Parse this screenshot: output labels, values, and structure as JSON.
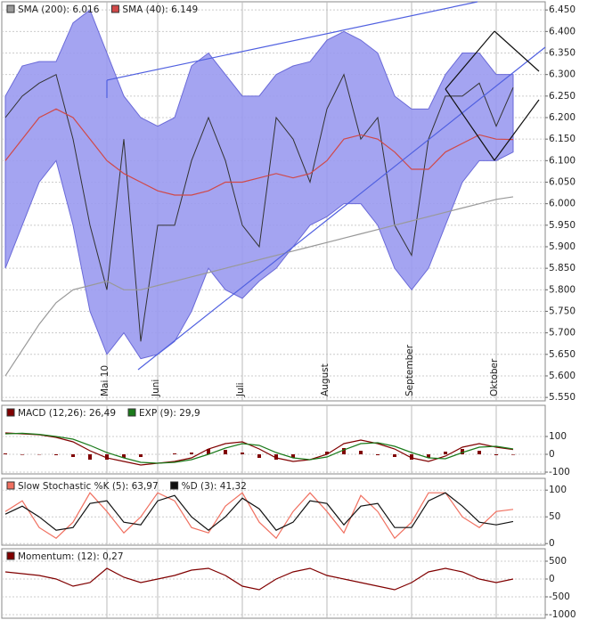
{
  "chart_data": [
    {
      "type": "line",
      "categories": [
        null,
        null,
        null,
        null,
        null,
        null,
        "Mai 10",
        null,
        null,
        "Juni",
        null,
        null,
        null,
        null,
        "Juli",
        null,
        null,
        null,
        null,
        "August",
        null,
        null,
        null,
        null,
        "September",
        null,
        null,
        null,
        null,
        "Oktober",
        null
      ],
      "series": [
        {
          "name": "SMA (200): 6.016",
          "color": "#999999",
          "values": [
            5.6,
            5.66,
            5.72,
            5.77,
            5.8,
            5.81,
            5.82,
            5.8,
            5.8,
            5.81,
            5.82,
            5.83,
            5.84,
            5.85,
            5.86,
            5.87,
            5.88,
            5.89,
            5.9,
            5.91,
            5.92,
            5.93,
            5.94,
            5.95,
            5.96,
            5.97,
            5.98,
            5.99,
            6.0,
            6.01,
            6.016
          ]
        },
        {
          "name": "SMA (40): 6.149",
          "color": "#d04848",
          "values": [
            6.1,
            6.15,
            6.2,
            6.22,
            6.2,
            6.15,
            6.1,
            6.07,
            6.05,
            6.03,
            6.02,
            6.02,
            6.03,
            6.05,
            6.05,
            6.06,
            6.07,
            6.06,
            6.07,
            6.1,
            6.15,
            6.16,
            6.15,
            6.12,
            6.08,
            6.08,
            6.12,
            6.14,
            6.16,
            6.15,
            6.149
          ]
        }
      ],
      "band": {
        "color": "#9a9af0",
        "upper": [
          6.25,
          6.32,
          6.33,
          6.33,
          6.42,
          6.45,
          6.35,
          6.25,
          6.2,
          6.18,
          6.2,
          6.32,
          6.35,
          6.3,
          6.25,
          6.25,
          6.3,
          6.32,
          6.33,
          6.38,
          6.4,
          6.38,
          6.35,
          6.25,
          6.22,
          6.22,
          6.3,
          6.35,
          6.35,
          6.3,
          6.3
        ],
        "lower": [
          5.85,
          5.95,
          6.05,
          6.1,
          5.95,
          5.75,
          5.65,
          5.7,
          5.64,
          5.65,
          5.68,
          5.75,
          5.85,
          5.8,
          5.78,
          5.82,
          5.85,
          5.9,
          5.95,
          5.97,
          6.0,
          6.0,
          5.95,
          5.85,
          5.8,
          5.85,
          5.95,
          6.05,
          6.1,
          6.1,
          6.12
        ]
      },
      "price": {
        "color": "#333333",
        "values": [
          6.2,
          6.25,
          6.28,
          6.3,
          6.15,
          5.95,
          5.8,
          6.15,
          5.68,
          5.95,
          5.95,
          6.1,
          6.2,
          6.1,
          5.95,
          5.9,
          6.2,
          6.15,
          6.05,
          6.22,
          6.3,
          6.15,
          6.2,
          5.95,
          5.88,
          6.15,
          6.25,
          6.25,
          6.28,
          6.18,
          6.27
        ]
      },
      "ylim": [
        5.542,
        6.469
      ],
      "yticks": [
        {
          "value": 6.45,
          "label": "6.450"
        },
        {
          "value": 6.4,
          "label": "6.400"
        },
        {
          "value": 6.35,
          "label": "6.350"
        },
        {
          "value": 6.3,
          "label": "6.300"
        },
        {
          "value": 6.25,
          "label": "6.250"
        },
        {
          "value": 6.2,
          "label": "6.200"
        },
        {
          "value": 6.15,
          "label": "6.150"
        },
        {
          "value": 6.1,
          "label": "6.100"
        },
        {
          "value": 6.05,
          "label": "6.050"
        },
        {
          "value": 6,
          "label": "6.000"
        },
        {
          "value": 5.95,
          "label": "5.950"
        },
        {
          "value": 5.9,
          "label": "5.900"
        },
        {
          "value": 5.85,
          "label": "5.850"
        },
        {
          "value": 5.8,
          "label": "5.800"
        },
        {
          "value": 5.75,
          "label": "5.750"
        },
        {
          "value": 5.7,
          "label": "5.700"
        },
        {
          "value": 5.65,
          "label": "5.650"
        },
        {
          "value": 5.6,
          "label": "5.600"
        },
        {
          "value": 5.55,
          "label": "5.550"
        }
      ],
      "grid": true
    },
    {
      "type": "line",
      "series": [
        {
          "name": "MACD (12,26): 26,49",
          "color": "#800000",
          "values": [
            120,
            115,
            110,
            95,
            70,
            20,
            -20,
            -40,
            -60,
            -50,
            -40,
            -20,
            30,
            60,
            70,
            30,
            -20,
            -40,
            -30,
            0,
            60,
            80,
            60,
            30,
            -20,
            -40,
            -10,
            40,
            60,
            40,
            26.49
          ]
        },
        {
          "name": "EXP (9): 29,9",
          "color": "#1a7a1a",
          "values": [
            115,
            118,
            112,
            100,
            85,
            50,
            10,
            -20,
            -45,
            -50,
            -45,
            -30,
            0,
            35,
            60,
            50,
            10,
            -20,
            -30,
            -15,
            25,
            60,
            65,
            45,
            10,
            -20,
            -25,
            10,
            40,
            45,
            29.9
          ]
        }
      ],
      "histogram": {
        "color": "#800000",
        "values": [
          5,
          -3,
          -2,
          -5,
          -15,
          -30,
          -30,
          -20,
          -15,
          0,
          5,
          10,
          30,
          25,
          10,
          -20,
          -30,
          -20,
          0,
          15,
          35,
          20,
          -5,
          -15,
          -30,
          -20,
          15,
          30,
          20,
          -5,
          -3
        ]
      },
      "ylim": [
        -110,
        275
      ],
      "yticks": [
        100,
        0,
        -100
      ],
      "grid": true
    },
    {
      "type": "line",
      "series": [
        {
          "name": "Slow Stochastic %K (5): 63,97",
          "color": "#f07060",
          "values": [
            60,
            80,
            30,
            10,
            40,
            95,
            60,
            20,
            50,
            95,
            80,
            30,
            20,
            70,
            95,
            40,
            10,
            60,
            95,
            60,
            20,
            90,
            60,
            10,
            40,
            95,
            95,
            50,
            30,
            60,
            63.97
          ]
        },
        {
          "name": "%D (3): 41,32",
          "color": "#111111",
          "values": [
            55,
            70,
            50,
            25,
            30,
            75,
            80,
            40,
            35,
            80,
            90,
            50,
            25,
            50,
            85,
            65,
            25,
            40,
            80,
            75,
            35,
            70,
            75,
            30,
            30,
            80,
            95,
            70,
            40,
            35,
            41.32
          ]
        }
      ],
      "ylim": [
        -3,
        122
      ],
      "yticks": [
        100,
        50,
        0
      ],
      "grid": true
    },
    {
      "type": "line",
      "series": [
        {
          "name": "Momentum: (12): 0,27",
          "color": "#800000",
          "values": [
            200,
            150,
            100,
            0,
            -200,
            -100,
            300,
            50,
            -100,
            0,
            100,
            250,
            300,
            100,
            -200,
            -300,
            0,
            200,
            300,
            100,
            0,
            -100,
            -200,
            -300,
            -100,
            200,
            300,
            200,
            0,
            -100,
            0.27
          ]
        }
      ],
      "ylim": [
        -1100,
        850
      ],
      "yticks": [
        500,
        0,
        -500,
        -1000
      ],
      "grid": true
    }
  ]
}
